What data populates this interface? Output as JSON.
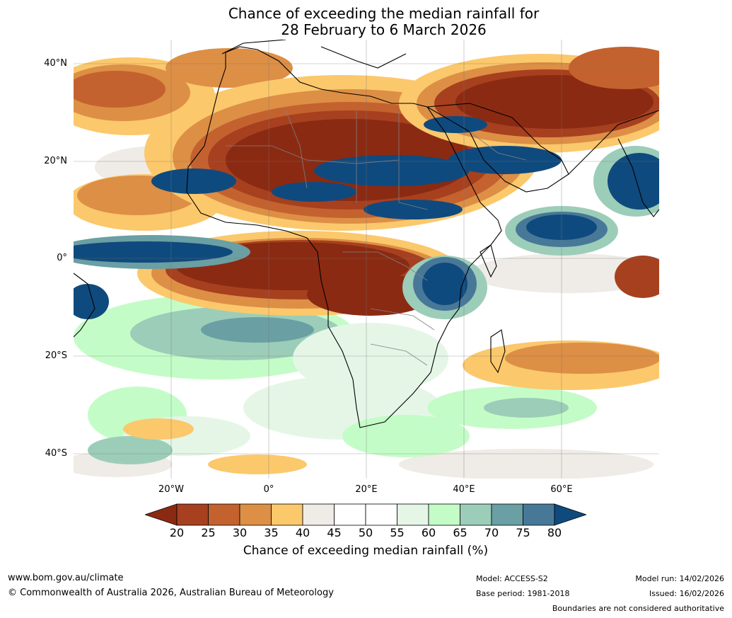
{
  "title": {
    "line1": "Chance of exceeding the median rainfall for",
    "line2": "28 February to 6 March 2026"
  },
  "axes": {
    "lat_labels": [
      "40°N",
      "20°N",
      "0°",
      "20°S",
      "40°S"
    ],
    "lon_labels": [
      "20°W",
      "0°",
      "20°E",
      "40°E",
      "60°E"
    ]
  },
  "colorbar": {
    "ticks": [
      "20",
      "25",
      "30",
      "35",
      "40",
      "45",
      "50",
      "55",
      "60",
      "65",
      "70",
      "75",
      "80"
    ],
    "label": "Chance of exceeding median rainfall (%)",
    "colors": [
      "#8b2a12",
      "#a7401f",
      "#c4622f",
      "#dd8f45",
      "#fbc86c",
      "#efebe6",
      "#ffffff",
      "#ffffff",
      "#e5f6e7",
      "#c4fcc8",
      "#9ccdb8",
      "#6a9fa3",
      "#487898",
      "#0f4a7e"
    ]
  },
  "footer": {
    "website": "www.bom.gov.au/climate",
    "copyright": "© Commonwealth of Australia 2026, Australian Bureau of Meteorology",
    "model": "Model: ACCESS-S2",
    "base_period": "Base period: 1981-2018",
    "model_run": "Model run: 14/02/2026",
    "issued": "Issued: 16/02/2026",
    "disclaimer": "Boundaries are not considered authoritative"
  }
}
